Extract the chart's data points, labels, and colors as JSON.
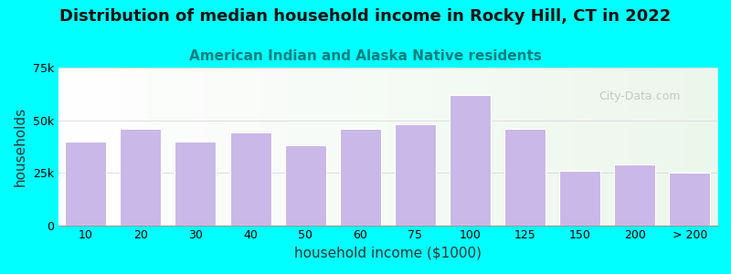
{
  "title": "Distribution of median household income in Rocky Hill, CT in 2022",
  "subtitle": "American Indian and Alaska Native residents",
  "xlabel": "household income ($1000)",
  "ylabel": "households",
  "bar_labels": [
    "10",
    "20",
    "30",
    "40",
    "50",
    "60",
    "75",
    "100",
    "125",
    "150",
    "200",
    "> 200"
  ],
  "bar_values": [
    40000,
    46000,
    40000,
    44000,
    38000,
    46000,
    48000,
    62000,
    46000,
    26000,
    29000,
    25000
  ],
  "bar_color": "#c9b8e8",
  "bar_edge_color": "#ffffff",
  "bg_outer": "#00ffff",
  "bg_plot_top": "#efffef",
  "bg_plot_bottom": "#ffffff",
  "ytick_labels": [
    "0",
    "25k",
    "50k",
    "75k"
  ],
  "ytick_values": [
    0,
    25000,
    50000,
    75000
  ],
  "ylim": [
    0,
    75000
  ],
  "watermark": "City-Data.com",
  "title_fontsize": 13,
  "subtitle_fontsize": 11,
  "axis_label_fontsize": 11
}
